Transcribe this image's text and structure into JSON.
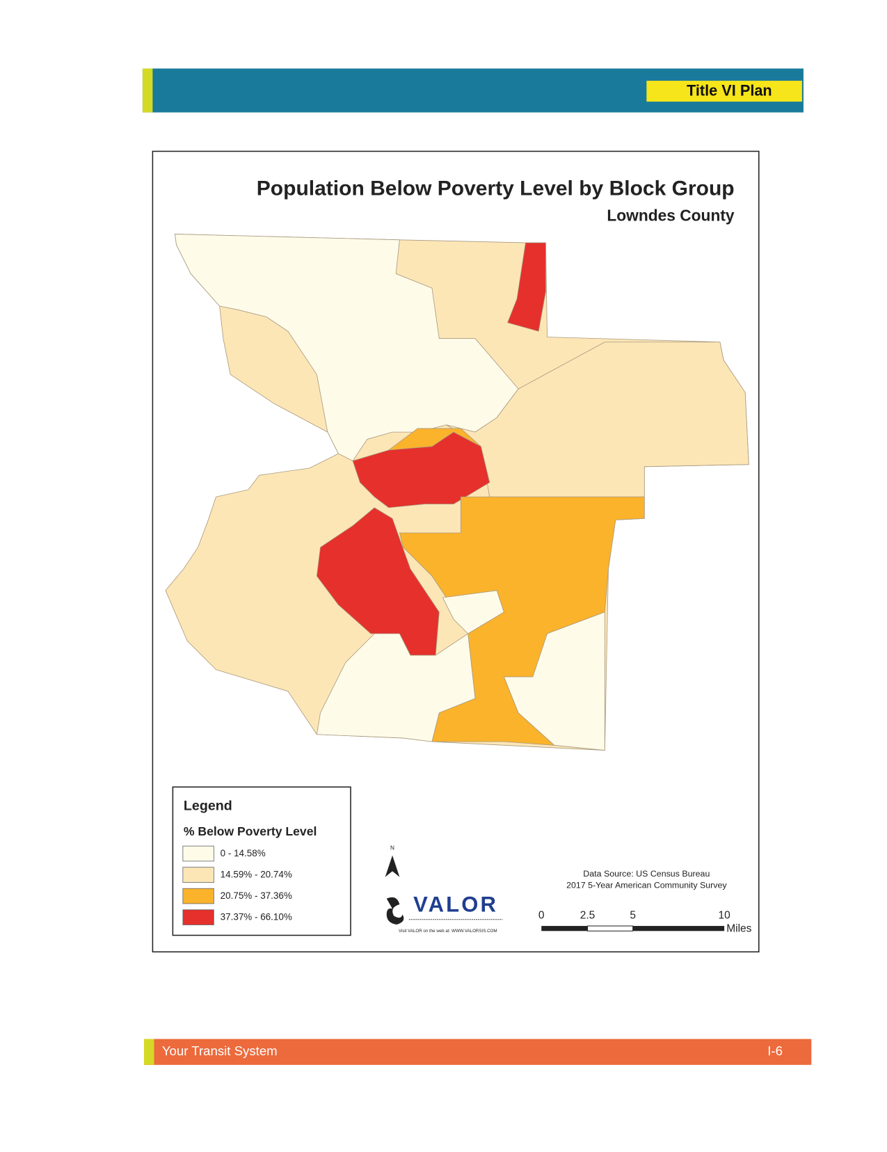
{
  "header": {
    "title": "Title VI Plan"
  },
  "map": {
    "title": "Population Below Poverty Level by Block Group",
    "subtitle": "Lowndes County",
    "legend": {
      "title": "Legend",
      "subtitle": "% Below Poverty Level",
      "items": [
        {
          "label": "0 - 14.58%",
          "color": "#fffbe9"
        },
        {
          "label": "14.59% - 20.74%",
          "color": "#fde6b6"
        },
        {
          "label": "20.75% - 37.36%",
          "color": "#fbb32b"
        },
        {
          "label": "37.37% - 66.10%",
          "color": "#e5302c"
        }
      ]
    },
    "logo": {
      "name": "VALOR",
      "url_text": "Visit VALOR on the web at: WWW.VALORSIS.COM"
    },
    "data_source": [
      "Data Source: US Census Bureau",
      "2017 5-Year American Community Survey"
    ],
    "scale": {
      "labels": [
        "0",
        "2.5",
        "5",
        "10"
      ],
      "unit": "Miles"
    }
  },
  "footer": {
    "left": "Your Transit System",
    "right": "I-6"
  }
}
